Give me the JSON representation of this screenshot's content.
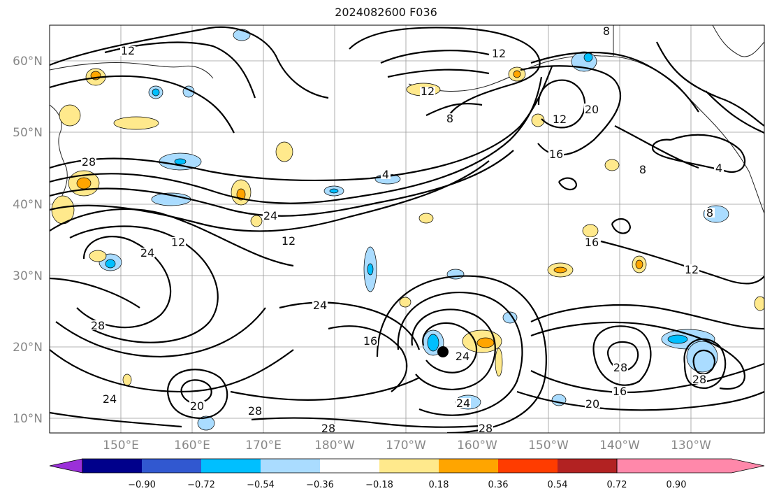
{
  "title": "2024082600 F036",
  "map": {
    "lat_labels": [
      "60°N",
      "50°N",
      "40°N",
      "30°N",
      "20°N",
      "10°N"
    ],
    "lon_labels": [
      "150°E",
      "160°E",
      "170°E",
      "180°W",
      "170°W",
      "160°W",
      "150°W",
      "140°W",
      "130°W"
    ]
  },
  "colorbar": {
    "tick_labels": [
      "−0.90",
      "−0.72",
      "−0.54",
      "−0.36",
      "−0.18",
      "0.18",
      "0.36",
      "0.54",
      "0.72",
      "0.90"
    ],
    "colors": [
      "#9b30d9",
      "#00008b",
      "#3158d0",
      "#00bfff",
      "#aadcff",
      "#ffffff",
      "#ffe98c",
      "#ffa500",
      "#ff3c00",
      "#b22222",
      "#ff88aa"
    ]
  },
  "contour_labels": [
    "12",
    "12",
    "12",
    "8",
    "8",
    "20",
    "12",
    "16",
    "8",
    "4",
    "28",
    "4",
    "24",
    "12",
    "12",
    "24",
    "16",
    "12",
    "24",
    "16",
    "24",
    "24",
    "28",
    "20",
    "28",
    "28",
    "24",
    "16",
    "20",
    "28",
    "28",
    "8",
    "28"
  ],
  "storm_marker": "storm-center"
}
